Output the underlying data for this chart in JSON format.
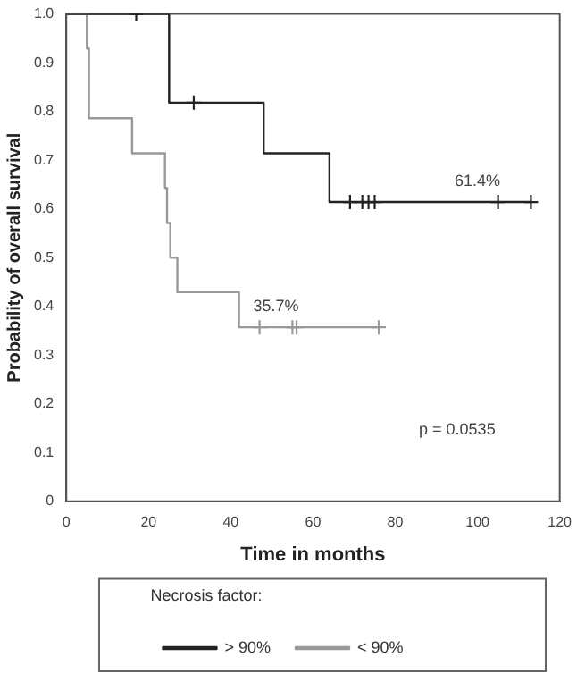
{
  "chart_data": {
    "type": "step",
    "xlabel": "Time in months",
    "ylabel": "Probability of overall survival",
    "legend_title": "Necrosis factor:",
    "series": [
      {
        "name": "> 90%",
        "color": "#222222",
        "x": [
          0,
          25,
          48,
          64,
          113
        ],
        "values": [
          1,
          0.818,
          0.714,
          0.614,
          0.614
        ]
      },
      {
        "name": "< 90%",
        "color": "#999999",
        "x": [
          0,
          5,
          5.5,
          16,
          24,
          24.5,
          25.3,
          27,
          42,
          76
        ],
        "values": [
          1,
          0.929,
          0.786,
          0.714,
          0.643,
          0.571,
          0.5,
          0.429,
          0.357,
          0.357
        ]
      },
      {
        "type": "scatter",
        "marker": "cross",
        "color": "#222222",
        "x": [
          17,
          31,
          69,
          72,
          73.5,
          75,
          105,
          113
        ],
        "values": [
          1,
          0.818,
          0.614,
          0.614,
          0.614,
          0.614,
          0.614,
          0.614
        ]
      },
      {
        "type": "scatter",
        "marker": "cross",
        "color": "#999999",
        "x": [
          47,
          55,
          56,
          76
        ],
        "values": [
          0.357,
          0.357,
          0.357,
          0.357
        ]
      }
    ],
    "xlim": [
      0,
      120
    ],
    "xticks": [
      0,
      20,
      40,
      60,
      80,
      100,
      120
    ],
    "ylim": [
      0,
      1
    ],
    "yticks": [
      0,
      0.1,
      0.2,
      0.3,
      0.4,
      0.5,
      0.6,
      0.7,
      0.8,
      0.9,
      {
        "value": 1,
        "label": "1.0"
      }
    ],
    "grid": false,
    "legend": "bottom",
    "annotations": [
      {
        "text": "61.4%",
        "x": 100,
        "y": 0.614
      },
      {
        "text": "35.7%",
        "x": 51,
        "y": 0.357
      },
      "p = 0.0535"
    ]
  }
}
